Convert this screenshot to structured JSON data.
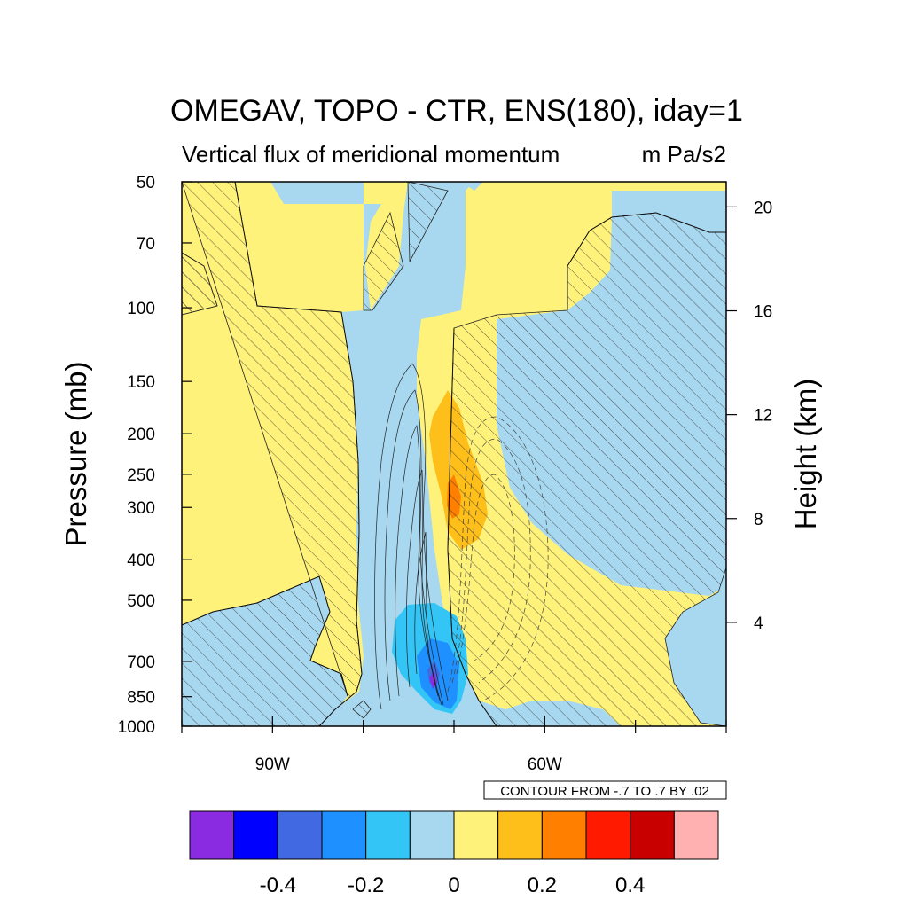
{
  "chart_data": {
    "type": "heatmap",
    "title": "OMEGAV, TOPO - CTR, ENS(180), iday=1",
    "subtitle_left": "Vertical flux of meridional momentum",
    "subtitle_right": "m Pa/s2",
    "ylabel": "Pressure (mb)",
    "ylabel_right": "Height (km)",
    "x_ticks": [
      "90W",
      "60W"
    ],
    "x_tick_values": [
      -90,
      -60
    ],
    "xlim": [
      -100,
      -40
    ],
    "y_ticks": [
      50,
      70,
      100,
      150,
      200,
      250,
      300,
      400,
      500,
      700,
      850,
      1000
    ],
    "ylim": [
      1000,
      50
    ],
    "y_scale": "log",
    "y_right_ticks": [
      20,
      16,
      12,
      8,
      4
    ],
    "contour_info": "CONTOUR FROM -.7 TO .7 BY .02",
    "colorbar": {
      "colors": [
        "#8a2be2",
        "#0000ff",
        "#4169e1",
        "#1e90ff",
        "#33c5f5",
        "#a8d8f0",
        "#fff27a",
        "#ffbf1a",
        "#ff7f00",
        "#ff1a00",
        "#c80000",
        "#ffb0b0"
      ],
      "tick_labels": [
        "-0.4",
        "-0.2",
        "0",
        "0.2",
        "0.4"
      ]
    },
    "colors": {
      "light_blue": "#a8d8f0",
      "light_yellow": "#fff27a",
      "orange": "#ffbf1a",
      "dark_orange": "#ff7f00",
      "blue1": "#33c5f5",
      "blue2": "#1e90ff",
      "blue3": "#4169e1",
      "purple": "#8a2be2",
      "hatch": "#333333"
    },
    "grid": false,
    "hatched_regions": "significance"
  }
}
